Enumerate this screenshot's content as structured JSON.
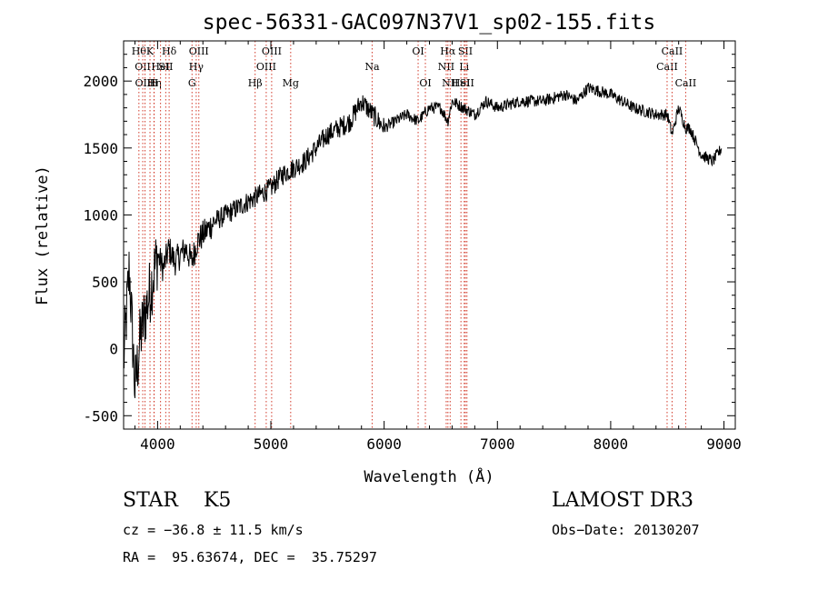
{
  "chart_data": {
    "type": "line",
    "title": "spec-56331-GAC097N37V1_sp02-155.fits",
    "xlabel": "Wavelength (Å)",
    "ylabel": "Flux (relative)",
    "xlim": [
      3700,
      9100
    ],
    "ylim": [
      -600,
      2300
    ],
    "x_ticks": [
      4000,
      5000,
      6000,
      7000,
      8000,
      9000
    ],
    "y_ticks": [
      -500,
      0,
      500,
      1000,
      1500,
      2000
    ],
    "spectrum": {
      "x": [
        3700,
        3750,
        3800,
        3850,
        3900,
        3950,
        4000,
        4050,
        4100,
        4150,
        4200,
        4250,
        4300,
        4350,
        4400,
        4500,
        4600,
        4700,
        4800,
        4900,
        5000,
        5100,
        5200,
        5300,
        5400,
        5500,
        5600,
        5700,
        5800,
        5850,
        5900,
        6000,
        6100,
        6200,
        6300,
        6400,
        6500,
        6563,
        6600,
        6700,
        6800,
        6900,
        7000,
        7200,
        7400,
        7600,
        7700,
        7800,
        8000,
        8200,
        8400,
        8500,
        8542,
        8600,
        8662,
        8700,
        8800,
        8900,
        8980
      ],
      "y": [
        -100,
        600,
        -300,
        100,
        300,
        500,
        700,
        600,
        750,
        650,
        700,
        750,
        650,
        800,
        850,
        950,
        1000,
        1050,
        1100,
        1150,
        1200,
        1300,
        1350,
        1400,
        1500,
        1600,
        1650,
        1700,
        1850,
        1800,
        1750,
        1650,
        1700,
        1750,
        1700,
        1800,
        1800,
        1700,
        1850,
        1800,
        1750,
        1850,
        1800,
        1850,
        1850,
        1900,
        1850,
        1950,
        1900,
        1800,
        1750,
        1750,
        1600,
        1800,
        1650,
        1650,
        1450,
        1400,
        1500
      ]
    },
    "lines": [
      {
        "wave": 3835,
        "label": "Hθ",
        "row": 0
      },
      {
        "wave": 3869,
        "label": "OII",
        "row": 1
      },
      {
        "wave": 3889,
        "label": "OIII",
        "row": 2
      },
      {
        "wave": 3933,
        "label": "K",
        "row": 0
      },
      {
        "wave": 3968,
        "label": "H",
        "row": 2
      },
      {
        "wave": 3970,
        "label": "Hη",
        "row": 2
      },
      {
        "wave": 4026,
        "label": "HeI",
        "row": 1
      },
      {
        "wave": 4072,
        "label": "SII",
        "row": 1
      },
      {
        "wave": 4102,
        "label": "Hδ",
        "row": 0
      },
      {
        "wave": 4304,
        "label": "G",
        "row": 2
      },
      {
        "wave": 4341,
        "label": "Hγ",
        "row": 1
      },
      {
        "wave": 4364,
        "label": "OIII",
        "row": 0
      },
      {
        "wave": 4861,
        "label": "Hβ",
        "row": 2
      },
      {
        "wave": 4959,
        "label": "OIII",
        "row": 1
      },
      {
        "wave": 5007,
        "label": "OIII",
        "row": 0
      },
      {
        "wave": 5175,
        "label": "Mg",
        "row": 2
      },
      {
        "wave": 5894,
        "label": "Na",
        "row": 1
      },
      {
        "wave": 6300,
        "label": "OI",
        "row": 0
      },
      {
        "wave": 6364,
        "label": "OI",
        "row": 2
      },
      {
        "wave": 6548,
        "label": "NII",
        "row": 1
      },
      {
        "wave": 6563,
        "label": "Hα",
        "row": 0
      },
      {
        "wave": 6583,
        "label": "NII",
        "row": 2
      },
      {
        "wave": 6678,
        "label": "HeI",
        "row": 2
      },
      {
        "wave": 6707,
        "label": "Li",
        "row": 1
      },
      {
        "wave": 6717,
        "label": "SII",
        "row": 0
      },
      {
        "wave": 6731,
        "label": "SII",
        "row": 2
      },
      {
        "wave": 8498,
        "label": "CaII",
        "row": 1
      },
      {
        "wave": 8542,
        "label": "CaII",
        "row": 0
      },
      {
        "wave": 8662,
        "label": "CaII",
        "row": 2
      }
    ]
  },
  "info": {
    "object": "STAR    K5",
    "survey": "LAMOST DR3",
    "cz": "cz = −36.8 ± 11.5 km/s",
    "obs_date": "Obs−Date: 20130207",
    "coords": "RA =  95.63674, DEC =  35.75297"
  }
}
